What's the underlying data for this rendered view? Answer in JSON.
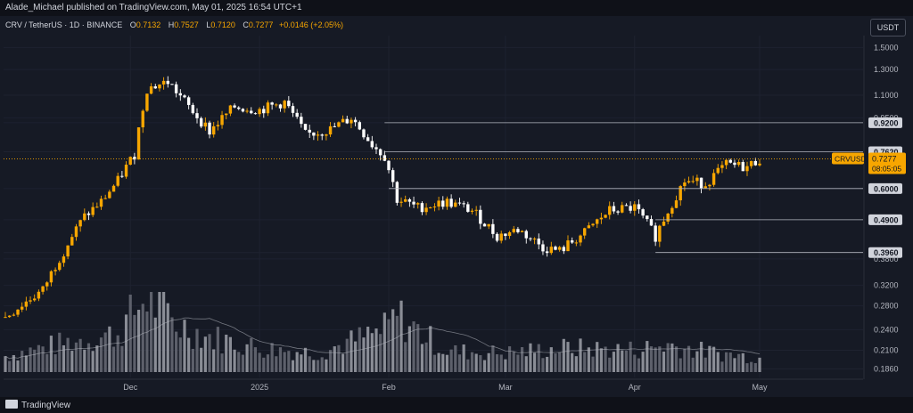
{
  "header": {
    "publisher_line": "Alade_Michael published on TradingView.com, May 01, 2025 16:54 UTC+1"
  },
  "legend": {
    "symbol": "CRV / TetherUS · 1D · BINANCE",
    "o_label": "O",
    "o_value": "0.7132",
    "h_label": "H",
    "h_value": "0.7527",
    "l_label": "L",
    "l_value": "0.7120",
    "c_label": "C",
    "c_value": "0.7277",
    "change": "+0.0146 (+2.05%)"
  },
  "quote_currency": "USDT",
  "footer": {
    "brand": "TradingView"
  },
  "colors": {
    "up": "#f7a600",
    "down": "#ffffff",
    "background": "#161a25",
    "grid": "#1e2230",
    "level_line": "#b2b5be"
  },
  "chart_data": {
    "type": "candlestick",
    "y_scale": "log",
    "y_ticks": [
      1.5,
      1.3,
      1.1,
      0.95,
      0.92,
      0.762,
      0.6,
      0.49,
      0.396,
      0.38,
      0.32,
      0.28,
      0.24,
      0.21,
      0.186
    ],
    "y_tick_labels": [
      "1.5000",
      "1.3000",
      "1.1000",
      "0.9500",
      "0.9200",
      "0.7620",
      "0.6000",
      "0.4900",
      "0.3960",
      "0.3800",
      "0.3200",
      "0.2800",
      "0.2400",
      "0.2100",
      "0.1860"
    ],
    "x_tick_labels": [
      "Dec",
      "2025",
      "Feb",
      "Mar",
      "Apr",
      "May"
    ],
    "x_tick_dates": [
      "2024-12-01",
      "2025-01-01",
      "2025-02-01",
      "2025-03-01",
      "2025-04-01",
      "2025-05-01"
    ],
    "horizontal_levels": [
      {
        "price": 0.92,
        "label": "0.9200",
        "from_date": "2025-01-31"
      },
      {
        "price": 0.762,
        "label": "0.7620",
        "from_date": "2025-01-31"
      },
      {
        "price": 0.6,
        "label": "0.6000",
        "from_date": "2025-02-01"
      },
      {
        "price": 0.49,
        "label": "0.4900",
        "from_date": "2025-04-06"
      },
      {
        "price": 0.396,
        "label": "0.3960",
        "from_date": "2025-04-06"
      }
    ],
    "last_price": {
      "symbol": "CRVUSDT",
      "value": "0.7277",
      "countdown": "08:05:05"
    },
    "close_series": {
      "dates": [
        "2024-11-01",
        "2024-11-10",
        "2024-11-15",
        "2024-11-20",
        "2024-11-24",
        "2024-11-28",
        "2024-12-02",
        "2024-12-05",
        "2024-12-10",
        "2024-12-15",
        "2024-12-20",
        "2024-12-26",
        "2025-01-01",
        "2025-01-07",
        "2025-01-12",
        "2025-01-18",
        "2025-01-23",
        "2025-01-28",
        "2025-01-31",
        "2025-02-03",
        "2025-02-08",
        "2025-02-15",
        "2025-02-21",
        "2025-02-27",
        "2025-03-04",
        "2025-03-10",
        "2025-03-14",
        "2025-03-20",
        "2025-03-26",
        "2025-04-01",
        "2025-04-06",
        "2025-04-09",
        "2025-04-13",
        "2025-04-18",
        "2025-04-23",
        "2025-04-28",
        "2025-05-01"
      ],
      "values": [
        0.26,
        0.31,
        0.4,
        0.5,
        0.55,
        0.63,
        0.75,
        1.15,
        1.2,
        1.02,
        0.87,
        1.02,
        1.0,
        1.05,
        0.85,
        0.88,
        0.95,
        0.8,
        0.74,
        0.56,
        0.53,
        0.55,
        0.52,
        0.44,
        0.46,
        0.41,
        0.4,
        0.45,
        0.52,
        0.53,
        0.44,
        0.52,
        0.63,
        0.62,
        0.7,
        0.69,
        0.7277
      ]
    },
    "volume_series": {
      "dates": [
        "2024-11-01",
        "2024-11-15",
        "2024-11-28",
        "2024-12-05",
        "2024-12-12",
        "2024-12-20",
        "2025-01-01",
        "2025-01-15",
        "2025-01-31",
        "2025-02-03",
        "2025-02-15",
        "2025-03-01",
        "2025-03-15",
        "2025-04-01",
        "2025-04-09",
        "2025-04-20",
        "2025-05-01"
      ],
      "values": [
        1.0,
        1.8,
        2.4,
        4.8,
        3.0,
        2.2,
        1.5,
        1.2,
        2.6,
        3.5,
        1.3,
        1.2,
        1.5,
        1.4,
        1.7,
        1.2,
        0.9
      ]
    }
  }
}
